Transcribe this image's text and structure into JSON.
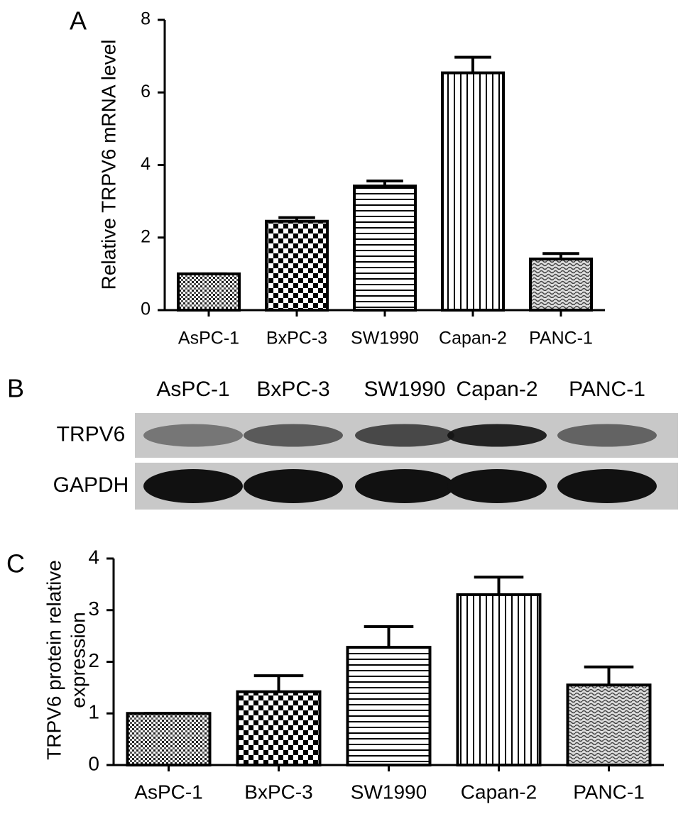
{
  "chart_data": [
    {
      "type": "bar",
      "panel_label": "A",
      "ylabel": [
        "Relative TRPV6 mRNA level"
      ],
      "categories": [
        "AsPC-1",
        "BxPC-3",
        "SW1990",
        "Capan-2",
        "PANC-1"
      ],
      "values": [
        1.0,
        2.45,
        3.42,
        6.54,
        1.41
      ],
      "errors": [
        0,
        0.1,
        0.14,
        0.43,
        0.15
      ],
      "color": "#000000",
      "ylim": [
        0,
        8
      ],
      "yticks": [
        0,
        2,
        4,
        6,
        8
      ]
    },
    {
      "type": "blot",
      "panel_label": "B",
      "categories": [
        "AsPC-1",
        "BxPC-3",
        "SW1990",
        "Capan-2",
        "PANC-1"
      ],
      "rows": [
        "TRPV6",
        "GAPDH"
      ]
    },
    {
      "type": "bar",
      "panel_label": "C",
      "ylabel": [
        "TRPV6 protein relative",
        "expression"
      ],
      "categories": [
        "AsPC-1",
        "BxPC-3",
        "SW1990",
        "Capan-2",
        "PANC-1"
      ],
      "values": [
        1.0,
        1.42,
        2.28,
        3.3,
        1.55
      ],
      "errors": [
        0,
        0.31,
        0.4,
        0.34,
        0.35
      ],
      "color": "#000000",
      "ylim": [
        0,
        4
      ],
      "yticks": [
        0,
        1,
        2,
        3,
        4
      ]
    }
  ]
}
